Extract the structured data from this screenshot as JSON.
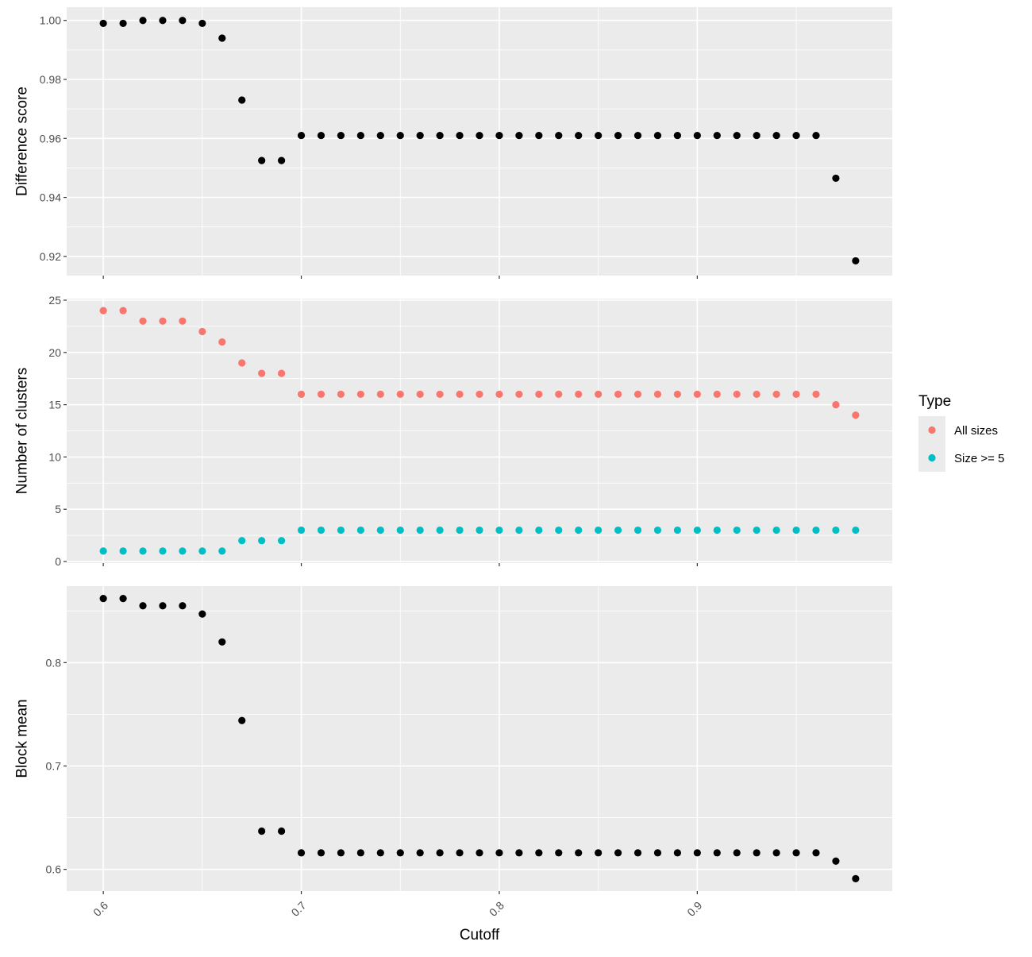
{
  "chart_data": {
    "type": "scatter",
    "x_label": "Cutoff",
    "x_range": [
      0.5815,
      0.9985
    ],
    "x_ticks": [
      0.6,
      0.7,
      0.8,
      0.9
    ],
    "x_tick_labels": [
      "0.6",
      "0.7",
      "0.8",
      "0.9"
    ],
    "x": [
      0.6,
      0.61,
      0.62,
      0.63,
      0.64,
      0.65,
      0.66,
      0.67,
      0.68,
      0.69,
      0.7,
      0.71,
      0.72,
      0.73,
      0.74,
      0.75,
      0.76,
      0.77,
      0.78,
      0.79,
      0.8,
      0.81,
      0.82,
      0.83,
      0.84,
      0.85,
      0.86,
      0.87,
      0.88,
      0.89,
      0.9,
      0.91,
      0.92,
      0.93,
      0.94,
      0.95,
      0.96,
      0.97,
      0.98
    ],
    "grid": true,
    "legend": {
      "title": "Type",
      "position": "right",
      "entries": [
        {
          "label": "All sizes",
          "color": "#F8766D"
        },
        {
          "label": "Size >= 5",
          "color": "#00BFC4"
        }
      ]
    },
    "panels": [
      {
        "ylabel": "Difference score",
        "ylim": [
          0.9135,
          1.0045
        ],
        "y_ticks": [
          0.92,
          0.94,
          0.96,
          0.98,
          1.0
        ],
        "y_tick_labels": [
          "0.92",
          "0.94",
          "0.96",
          "0.98",
          "1.00"
        ],
        "series": [
          {
            "color": "#000000",
            "values": [
              0.999,
              0.999,
              1.0,
              1.0,
              1.0,
              0.999,
              0.994,
              0.973,
              0.9525,
              0.9525,
              0.961,
              0.961,
              0.961,
              0.961,
              0.961,
              0.961,
              0.961,
              0.961,
              0.961,
              0.961,
              0.961,
              0.961,
              0.961,
              0.961,
              0.961,
              0.961,
              0.961,
              0.961,
              0.961,
              0.961,
              0.961,
              0.961,
              0.961,
              0.961,
              0.961,
              0.961,
              0.961,
              0.9465,
              0.9185
            ]
          }
        ]
      },
      {
        "ylabel": "Number of clusters",
        "ylim": [
          -0.15,
          25.15
        ],
        "y_ticks": [
          0,
          5,
          10,
          15,
          20,
          25
        ],
        "y_tick_labels": [
          "0",
          "5",
          "10",
          "15",
          "20",
          "25"
        ],
        "series": [
          {
            "name": "All sizes",
            "color": "#F8766D",
            "values": [
              24,
              24,
              23,
              23,
              23,
              22,
              21,
              19,
              18,
              18,
              16,
              16,
              16,
              16,
              16,
              16,
              16,
              16,
              16,
              16,
              16,
              16,
              16,
              16,
              16,
              16,
              16,
              16,
              16,
              16,
              16,
              16,
              16,
              16,
              16,
              16,
              16,
              15,
              14
            ]
          },
          {
            "name": "Size >= 5",
            "color": "#00BFC4",
            "values": [
              1,
              1,
              1,
              1,
              1,
              1,
              1,
              2,
              2,
              2,
              3,
              3,
              3,
              3,
              3,
              3,
              3,
              3,
              3,
              3,
              3,
              3,
              3,
              3,
              3,
              3,
              3,
              3,
              3,
              3,
              3,
              3,
              3,
              3,
              3,
              3,
              3,
              3,
              3
            ]
          }
        ]
      },
      {
        "ylabel": "Block mean",
        "ylim": [
          0.579,
          0.874
        ],
        "y_ticks": [
          0.6,
          0.7,
          0.8
        ],
        "y_tick_labels": [
          "0.6",
          "0.7",
          "0.8"
        ],
        "series": [
          {
            "color": "#000000",
            "values": [
              0.862,
              0.862,
              0.855,
              0.855,
              0.855,
              0.847,
              0.82,
              0.744,
              0.637,
              0.637,
              0.616,
              0.616,
              0.616,
              0.616,
              0.616,
              0.616,
              0.616,
              0.616,
              0.616,
              0.616,
              0.616,
              0.616,
              0.616,
              0.616,
              0.616,
              0.616,
              0.616,
              0.616,
              0.616,
              0.616,
              0.616,
              0.616,
              0.616,
              0.616,
              0.616,
              0.616,
              0.616,
              0.608,
              0.591
            ]
          }
        ]
      }
    ]
  }
}
